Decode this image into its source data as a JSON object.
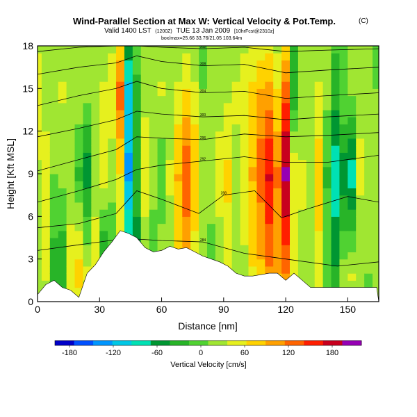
{
  "chart_data": {
    "type": "heatmap",
    "title": "Wind-Parallel Section at Max W: Vertical Velocity & Pot.Temp.",
    "title_mark": "(C)",
    "subtitle": "Valid 1400 LST",
    "subtitle_small1": "(1200Z)",
    "subtitle_date": "TUE 13 Jan 2009",
    "subtitle_small2": "[10hrFcst@2310z]",
    "subtitle_line3": "box/max=25.66 33.76/21.05 103.64m",
    "xlabel": "Distance [nm]",
    "ylabel": "Height [Kft MSL]",
    "xlim": [
      0,
      165
    ],
    "ylim": [
      0,
      18
    ],
    "xticks": [
      "0",
      "30",
      "60",
      "90",
      "120",
      "150"
    ],
    "yticks": [
      "0",
      "3",
      "6",
      "9",
      "12",
      "15",
      "18"
    ],
    "colorbar_label": "Vertical Velocity [cm/s]",
    "colorbar_ticks": [
      "-180",
      "-120",
      "-60",
      "0",
      "60",
      "120",
      "180"
    ],
    "colorbar_range": [
      -200,
      220
    ],
    "colorbar_colors": [
      "#0000c8",
      "#0050ff",
      "#0096ff",
      "#00c8e6",
      "#00e1b4",
      "#009632",
      "#28b428",
      "#50d232",
      "#a0e632",
      "#e6f01e",
      "#ffd200",
      "#ffa000",
      "#ff6400",
      "#ff1e00",
      "#c8001e",
      "#9600b4"
    ],
    "columns": [
      {
        "x": 0,
        "ground": 0.5,
        "w": [
          20,
          30,
          60
        ]
      },
      {
        "x": 4,
        "ground": 1.2,
        "w": [
          40,
          50,
          20
        ]
      },
      {
        "x": 8,
        "ground": 1.5,
        "w": [
          -30,
          10,
          30
        ]
      },
      {
        "x": 12,
        "ground": 1.0,
        "w": [
          -40,
          20,
          40
        ]
      },
      {
        "x": 16,
        "ground": 0.8,
        "w": [
          60,
          10,
          20
        ]
      },
      {
        "x": 20,
        "ground": 0.3,
        "w": [
          80,
          -20,
          30
        ]
      },
      {
        "x": 24,
        "ground": 2.0,
        "w": [
          40,
          -60,
          20
        ]
      },
      {
        "x": 28,
        "ground": 2.6,
        "w": [
          60,
          20,
          30
        ]
      },
      {
        "x": 32,
        "ground": 3.5,
        "w": [
          -60,
          50,
          40
        ]
      },
      {
        "x": 36,
        "ground": 4.2,
        "w": [
          -20,
          20,
          60
        ]
      },
      {
        "x": 40,
        "ground": 5.0,
        "w": [
          40,
          60,
          130
        ]
      },
      {
        "x": 44,
        "ground": 4.8,
        "w": [
          -40,
          -130,
          -100
        ]
      },
      {
        "x": 48,
        "ground": 4.5,
        "w": [
          -60,
          -30,
          -20
        ]
      },
      {
        "x": 52,
        "ground": 3.8,
        "w": [
          20,
          50,
          30
        ]
      },
      {
        "x": 56,
        "ground": 3.5,
        "w": [
          -10,
          20,
          30
        ]
      },
      {
        "x": 60,
        "ground": 3.6,
        "w": [
          30,
          -10,
          40
        ]
      },
      {
        "x": 64,
        "ground": 3.9,
        "w": [
          20,
          40,
          20
        ]
      },
      {
        "x": 68,
        "ground": 3.7,
        "w": [
          60,
          90,
          40
        ]
      },
      {
        "x": 72,
        "ground": 3.8,
        "w": [
          80,
          140,
          60
        ]
      },
      {
        "x": 76,
        "ground": 3.5,
        "w": [
          40,
          90,
          40
        ]
      },
      {
        "x": 80,
        "ground": 3.2,
        "w": [
          10,
          20,
          10
        ]
      },
      {
        "x": 84,
        "ground": 3.0,
        "w": [
          -10,
          30,
          30
        ]
      },
      {
        "x": 88,
        "ground": 2.8,
        "w": [
          20,
          50,
          20
        ]
      },
      {
        "x": 92,
        "ground": 2.5,
        "w": [
          40,
          70,
          30
        ]
      },
      {
        "x": 96,
        "ground": 2.0,
        "w": [
          20,
          30,
          40
        ]
      },
      {
        "x": 100,
        "ground": 1.8,
        "w": [
          30,
          50,
          60
        ]
      },
      {
        "x": 104,
        "ground": 1.8,
        "w": [
          60,
          90,
          70
        ]
      },
      {
        "x": 108,
        "ground": 1.9,
        "w": [
          80,
          130,
          90
        ]
      },
      {
        "x": 112,
        "ground": 2.0,
        "w": [
          110,
          170,
          100
        ]
      },
      {
        "x": 116,
        "ground": 2.0,
        "w": [
          90,
          120,
          60
        ]
      },
      {
        "x": 120,
        "ground": 1.5,
        "w": [
          120,
          200,
          130
        ]
      },
      {
        "x": 124,
        "ground": 2.0,
        "w": [
          40,
          60,
          -40
        ]
      },
      {
        "x": 128,
        "ground": 1.5,
        "w": [
          30,
          40,
          20
        ]
      },
      {
        "x": 132,
        "ground": 1.0,
        "w": [
          20,
          30,
          30
        ]
      },
      {
        "x": 136,
        "ground": 1.0,
        "w": [
          50,
          80,
          40
        ]
      },
      {
        "x": 140,
        "ground": 1.0,
        "w": [
          10,
          -20,
          20
        ]
      },
      {
        "x": 144,
        "ground": 1.0,
        "w": [
          -40,
          -90,
          -30
        ]
      },
      {
        "x": 148,
        "ground": 1.0,
        "w": [
          20,
          -60,
          10
        ]
      },
      {
        "x": 152,
        "ground": 1.0,
        "w": [
          40,
          -90,
          20
        ]
      },
      {
        "x": 156,
        "ground": 1.0,
        "w": [
          20,
          40,
          30
        ]
      },
      {
        "x": 160,
        "ground": 1.0,
        "w": [
          10,
          20,
          20
        ]
      },
      {
        "x": 164,
        "ground": 1.0,
        "w": [
          20,
          10,
          10
        ]
      }
    ],
    "isentropes": [
      {
        "label": "284",
        "pts": [
          [
            0,
            3.6
          ],
          [
            20,
            4.0
          ],
          [
            35,
            4.3
          ],
          [
            48,
            4.4
          ],
          [
            60,
            4.3
          ],
          [
            80,
            4.2
          ],
          [
            100,
            3.4
          ],
          [
            120,
            3.0
          ],
          [
            145,
            2.5
          ],
          [
            165,
            2.8
          ]
        ]
      },
      {
        "label": "288",
        "pts": [
          [
            0,
            5.2
          ],
          [
            20,
            5.5
          ],
          [
            38,
            6.2
          ],
          [
            48,
            7.8
          ],
          [
            60,
            7.2
          ],
          [
            78,
            6.2
          ],
          [
            90,
            7.5
          ],
          [
            105,
            7.8
          ],
          [
            118,
            5.9
          ],
          [
            130,
            6.5
          ],
          [
            150,
            7.4
          ],
          [
            165,
            7.0
          ]
        ]
      },
      {
        "label": "292",
        "pts": [
          [
            0,
            7.0
          ],
          [
            20,
            7.8
          ],
          [
            38,
            8.6
          ],
          [
            48,
            9.3
          ],
          [
            60,
            9.6
          ],
          [
            80,
            9.9
          ],
          [
            100,
            10.2
          ],
          [
            120,
            9.8
          ],
          [
            140,
            9.8
          ],
          [
            165,
            10.3
          ]
        ]
      },
      {
        "label": "296",
        "pts": [
          [
            0,
            9.2
          ],
          [
            20,
            10.0
          ],
          [
            38,
            10.7
          ],
          [
            48,
            11.6
          ],
          [
            60,
            11.5
          ],
          [
            80,
            11.4
          ],
          [
            100,
            11.8
          ],
          [
            120,
            11.6
          ],
          [
            140,
            11.7
          ],
          [
            165,
            11.9
          ]
        ]
      },
      {
        "label": "300",
        "pts": [
          [
            0,
            11.6
          ],
          [
            20,
            12.2
          ],
          [
            38,
            12.8
          ],
          [
            48,
            13.4
          ],
          [
            60,
            13.2
          ],
          [
            80,
            13.0
          ],
          [
            100,
            13.1
          ],
          [
            120,
            12.8
          ],
          [
            140,
            13.0
          ],
          [
            165,
            13.2
          ]
        ]
      },
      {
        "label": "304",
        "pts": [
          [
            0,
            13.8
          ],
          [
            20,
            14.5
          ],
          [
            38,
            15.0
          ],
          [
            48,
            15.5
          ],
          [
            60,
            15.0
          ],
          [
            80,
            14.7
          ],
          [
            100,
            14.8
          ],
          [
            120,
            14.3
          ],
          [
            140,
            14.5
          ],
          [
            165,
            14.7
          ]
        ]
      },
      {
        "label": "308",
        "pts": [
          [
            0,
            16.0
          ],
          [
            20,
            16.5
          ],
          [
            38,
            16.8
          ],
          [
            48,
            17.3
          ],
          [
            60,
            16.9
          ],
          [
            80,
            16.6
          ],
          [
            100,
            16.7
          ],
          [
            120,
            16.1
          ],
          [
            140,
            16.3
          ],
          [
            165,
            16.5
          ]
        ]
      },
      {
        "label": "312",
        "pts": [
          [
            0,
            17.6
          ],
          [
            20,
            17.9
          ],
          [
            38,
            18.0
          ],
          [
            48,
            18.0
          ],
          [
            60,
            17.9
          ],
          [
            80,
            17.8
          ],
          [
            100,
            17.9
          ],
          [
            120,
            17.6
          ],
          [
            140,
            17.7
          ],
          [
            165,
            17.8
          ]
        ]
      }
    ]
  }
}
